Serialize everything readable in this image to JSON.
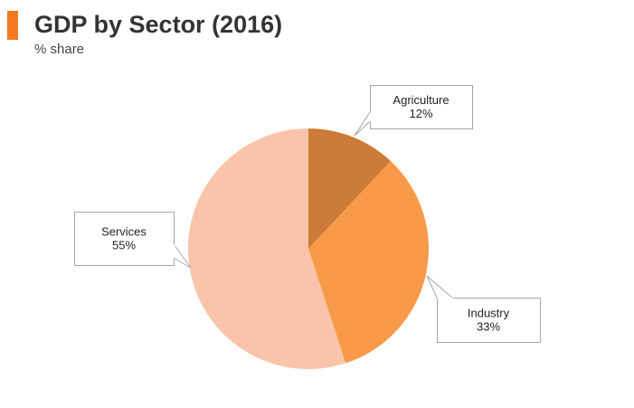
{
  "title": "GDP by Sector (2016)",
  "subtitle": "% share",
  "colors": {
    "title_bar": "#f47920",
    "Agriculture": "#cd7b38",
    "Industry": "#f89a49",
    "Services": "#f9c4a9"
  },
  "chart_data": {
    "type": "pie",
    "title": "GDP by Sector (2016)",
    "subtitle": "% share",
    "slices": [
      {
        "label": "Agriculture",
        "value": 12,
        "display": "12%"
      },
      {
        "label": "Industry",
        "value": 33,
        "display": "33%"
      },
      {
        "label": "Services",
        "value": 55,
        "display": "55%"
      }
    ]
  }
}
